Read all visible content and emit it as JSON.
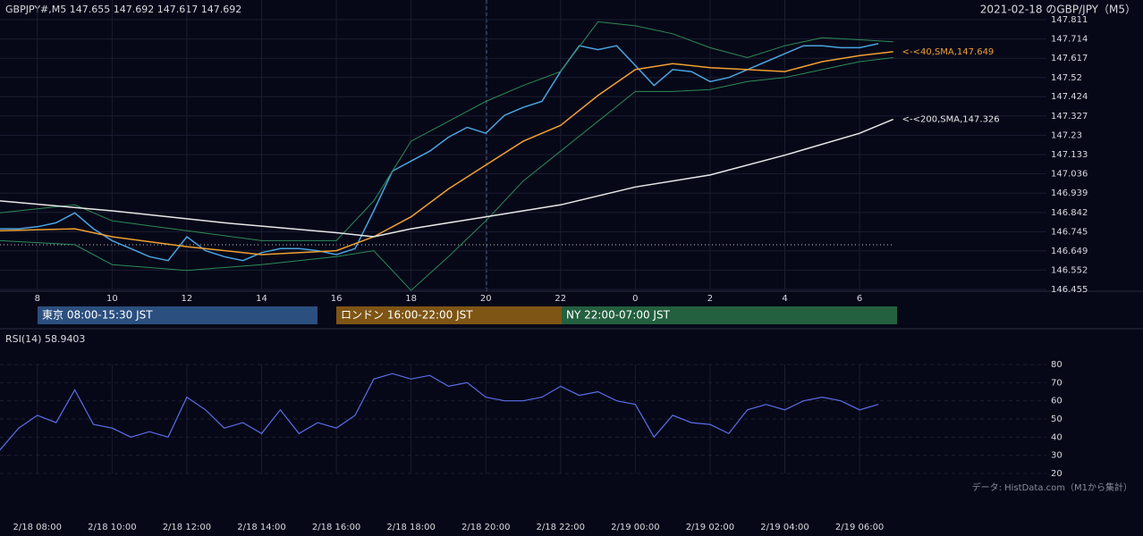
{
  "chart_data": [
    {
      "type": "line",
      "title": "GBPJPY#,M5 147.655 147.692 147.617 147.692",
      "subtitle": "2021-02-18 のGBP/JPY（M5）",
      "xlim": [
        7,
        35
      ],
      "ylim": [
        146.455,
        147.811
      ],
      "xticks": [
        8,
        10,
        12,
        14,
        16,
        18,
        20,
        22,
        {
          "value": 24,
          "label": "0"
        },
        {
          "value": 26,
          "label": "2"
        },
        {
          "value": 28,
          "label": "4"
        },
        {
          "value": 30,
          "label": "6"
        }
      ],
      "yticks": [
        147.811,
        147.714,
        147.617,
        147.52,
        147.424,
        147.327,
        147.23,
        147.133,
        147.036,
        146.939,
        146.842,
        146.745,
        146.649,
        146.552,
        146.455
      ],
      "grid": true,
      "series": [
        {
          "color": "#4aa3df",
          "width": 1.5,
          "x": [
            7,
            7.5,
            8,
            8.5,
            9,
            9.5,
            10,
            10.5,
            11,
            11.5,
            12,
            12.5,
            13,
            13.5,
            14,
            14.5,
            15,
            15.5,
            16,
            16.5,
            17,
            17.5,
            18,
            18.5,
            19,
            19.5,
            20,
            20.5,
            21,
            21.5,
            22,
            22.5,
            23,
            23.5,
            24,
            24.5,
            25,
            25.5,
            26,
            26.5,
            27,
            27.5,
            28,
            28.5,
            29,
            29.5,
            30,
            30.5
          ],
          "values": [
            146.76,
            146.76,
            146.77,
            146.79,
            146.84,
            146.76,
            146.7,
            146.66,
            146.62,
            146.6,
            146.72,
            146.65,
            146.62,
            146.6,
            146.64,
            146.66,
            146.66,
            146.65,
            146.63,
            146.66,
            146.85,
            147.05,
            147.1,
            147.15,
            147.22,
            147.27,
            147.24,
            147.33,
            147.37,
            147.4,
            147.55,
            147.68,
            147.66,
            147.68,
            147.58,
            147.48,
            147.56,
            147.55,
            147.5,
            147.52,
            147.56,
            147.6,
            147.64,
            147.68,
            147.68,
            147.67,
            147.67,
            147.69
          ]
        },
        {
          "color": "#2e8b57",
          "width": 1,
          "x": [
            7,
            9,
            10,
            12,
            14,
            16,
            17,
            18,
            19,
            20,
            21,
            22,
            23,
            24,
            25,
            26,
            27,
            28,
            29,
            30,
            30.9
          ],
          "values": [
            146.84,
            146.88,
            146.8,
            146.75,
            146.7,
            146.7,
            146.9,
            147.2,
            147.3,
            147.4,
            147.48,
            147.55,
            147.8,
            147.78,
            147.74,
            147.67,
            147.62,
            147.68,
            147.72,
            147.71,
            147.7
          ]
        },
        {
          "color": "#2e8b57",
          "width": 1,
          "x": [
            7,
            9,
            10,
            12,
            14,
            16,
            17,
            18,
            19,
            20,
            21,
            22,
            23,
            24,
            25,
            26,
            27,
            28,
            29,
            30,
            30.9
          ],
          "values": [
            146.7,
            146.68,
            146.58,
            146.55,
            146.58,
            146.62,
            146.65,
            146.45,
            146.62,
            146.8,
            147.0,
            147.15,
            147.3,
            147.45,
            147.45,
            147.46,
            147.5,
            147.52,
            147.56,
            147.6,
            147.62
          ]
        },
        {
          "color": "#f0a030",
          "width": 1.5,
          "label": "<-<40,SMA,147.649",
          "x": [
            7,
            9,
            10,
            12,
            14,
            16,
            17,
            18,
            19,
            20,
            21,
            22,
            23,
            24,
            25,
            26,
            27,
            28,
            29,
            30,
            30.9
          ],
          "values": [
            146.75,
            146.76,
            146.72,
            146.67,
            146.63,
            146.65,
            146.72,
            146.82,
            146.96,
            147.08,
            147.2,
            147.28,
            147.43,
            147.56,
            147.59,
            147.57,
            147.56,
            147.55,
            147.6,
            147.63,
            147.65
          ]
        },
        {
          "color": "#e8e8e8",
          "width": 1.5,
          "label": "<-<200,SMA,147.326",
          "x": [
            7,
            10,
            13,
            16,
            17,
            18,
            20,
            22,
            24,
            26,
            28,
            30,
            30.9
          ],
          "values": [
            146.9,
            146.85,
            146.79,
            146.74,
            146.72,
            146.76,
            146.82,
            146.88,
            146.97,
            147.03,
            147.13,
            147.24,
            147.31
          ]
        }
      ]
    },
    {
      "type": "line",
      "title": "RSI(14) 58.9403",
      "xlim": [
        7,
        35
      ],
      "ylim": [
        20,
        80
      ],
      "yticks": [
        20,
        30,
        40,
        50,
        60,
        70,
        80
      ],
      "xticks": [
        {
          "value": 8,
          "label": "2/18 08:00"
        },
        {
          "value": 10,
          "label": "2/18 10:00"
        },
        {
          "value": 12,
          "label": "2/18 12:00"
        },
        {
          "value": 14,
          "label": "2/18 14:00"
        },
        {
          "value": 16,
          "label": "2/18 16:00"
        },
        {
          "value": 18,
          "label": "2/18 18:00"
        },
        {
          "value": 20,
          "label": "2/18 20:00"
        },
        {
          "value": 22,
          "label": "2/18 22:00"
        },
        {
          "value": 24,
          "label": "2/19 00:00"
        },
        {
          "value": 26,
          "label": "2/19 02:00"
        },
        {
          "value": 28,
          "label": "2/19 04:00"
        },
        {
          "value": 30,
          "label": "2/19 06:00"
        }
      ],
      "grid": true,
      "series": [
        {
          "color": "#5b6ee8",
          "width": 1.2,
          "x": [
            7,
            7.5,
            8,
            8.5,
            9,
            9.5,
            10,
            10.5,
            11,
            11.5,
            12,
            12.5,
            13,
            13.5,
            14,
            14.5,
            15,
            15.5,
            16,
            16.5,
            17,
            17.5,
            18,
            18.5,
            19,
            19.5,
            20,
            20.5,
            21,
            21.5,
            22,
            22.5,
            23,
            23.5,
            24,
            24.5,
            25,
            25.5,
            26,
            26.5,
            27,
            27.5,
            28,
            28.5,
            29,
            29.5,
            30,
            30.5
          ],
          "values": [
            33,
            45,
            52,
            48,
            66,
            47,
            45,
            40,
            43,
            40,
            62,
            55,
            45,
            48,
            42,
            55,
            42,
            48,
            45,
            52,
            72,
            75,
            72,
            74,
            68,
            70,
            62,
            60,
            60,
            62,
            68,
            63,
            65,
            60,
            58,
            40,
            52,
            48,
            47,
            42,
            55,
            58,
            55,
            60,
            62,
            60,
            55,
            58
          ]
        }
      ],
      "note": "データ: HistData.com（M1から集計）"
    }
  ],
  "sessions": [
    "東京 08:00-15:30 JST",
    "ロンドン 16:00-22:00 JST",
    "NY 22:00-07:00 JST"
  ]
}
